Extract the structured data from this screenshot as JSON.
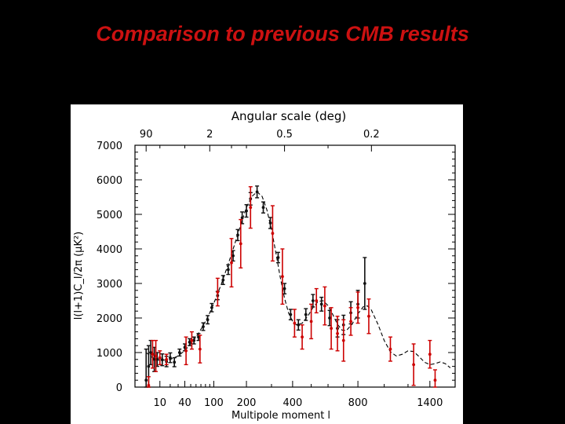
{
  "slide": {
    "title": "Comparison to previous CMB results"
  },
  "chart_data": {
    "type": "scatter",
    "title": "",
    "top_axis_label": "Angular scale (deg)",
    "top_ticks": [
      {
        "label": "90",
        "ell": 2
      },
      {
        "label": "2",
        "ell": 90
      },
      {
        "label": "0.5",
        "ell": 360
      },
      {
        "label": "0.2",
        "ell": 900
      }
    ],
    "xlabel": "Multipole moment l",
    "ylabel": "l(l+1)C_l/2π (μK²)",
    "x_ticks": [
      10,
      40,
      100,
      200,
      400,
      800,
      1400
    ],
    "y_ticks": [
      0,
      1000,
      2000,
      3000,
      4000,
      5000,
      6000,
      7000
    ],
    "ylim": [
      0,
      7000
    ],
    "x_scale": "sqrt",
    "series": [
      {
        "color": "#111111",
        "points": [
          [
            2,
            200,
            900
          ],
          [
            3,
            600,
            600
          ],
          [
            4,
            1000,
            350
          ],
          [
            6,
            800,
            350
          ],
          [
            8,
            800,
            200
          ],
          [
            12,
            790,
            170
          ],
          [
            16,
            740,
            150
          ],
          [
            20,
            850,
            140
          ],
          [
            25,
            720,
            130
          ],
          [
            32,
            1000,
            100
          ],
          [
            40,
            1150,
            100
          ],
          [
            48,
            1300,
            100
          ],
          [
            56,
            1350,
            100
          ],
          [
            65,
            1450,
            100
          ],
          [
            75,
            1750,
            110
          ],
          [
            85,
            1950,
            120
          ],
          [
            95,
            2300,
            120
          ],
          [
            110,
            2650,
            120
          ],
          [
            125,
            3100,
            130
          ],
          [
            140,
            3400,
            140
          ],
          [
            155,
            3800,
            150
          ],
          [
            170,
            4400,
            160
          ],
          [
            185,
            4900,
            170
          ],
          [
            200,
            5100,
            180
          ],
          [
            215,
            5450,
            180
          ],
          [
            240,
            5650,
            170
          ],
          [
            265,
            5200,
            160
          ],
          [
            295,
            4750,
            160
          ],
          [
            330,
            3750,
            150
          ],
          [
            360,
            2850,
            150
          ],
          [
            390,
            2100,
            150
          ],
          [
            430,
            1800,
            150
          ],
          [
            470,
            2100,
            170
          ],
          [
            510,
            2500,
            180
          ],
          [
            560,
            2400,
            200
          ],
          [
            610,
            2000,
            220
          ],
          [
            660,
            1700,
            250
          ],
          [
            700,
            1800,
            280
          ],
          [
            750,
            2150,
            320
          ],
          [
            800,
            2400,
            400
          ],
          [
            850,
            3000,
            750
          ]
        ]
      },
      {
        "color": "#cc0000",
        "points": [
          [
            3,
            50,
            250
          ],
          [
            5,
            950,
            400
          ],
          [
            7,
            900,
            450
          ],
          [
            10,
            850,
            200
          ],
          [
            16,
            800,
            150
          ],
          [
            42,
            1050,
            400
          ],
          [
            52,
            1350,
            250
          ],
          [
            68,
            1100,
            400
          ],
          [
            110,
            2750,
            400
          ],
          [
            150,
            3600,
            700
          ],
          [
            180,
            4150,
            700
          ],
          [
            215,
            5200,
            600
          ],
          [
            305,
            4450,
            800
          ],
          [
            350,
            3200,
            800
          ],
          [
            410,
            1850,
            400
          ],
          [
            450,
            1450,
            350
          ],
          [
            500,
            1900,
            500
          ],
          [
            530,
            2500,
            350
          ],
          [
            580,
            2350,
            550
          ],
          [
            620,
            1700,
            600
          ],
          [
            660,
            1550,
            500
          ],
          [
            700,
            1350,
            600
          ],
          [
            750,
            1900,
            400
          ],
          [
            800,
            2300,
            450
          ],
          [
            880,
            2050,
            500
          ],
          [
            1050,
            1100,
            350
          ],
          [
            1250,
            650,
            600
          ],
          [
            1400,
            950,
            400
          ],
          [
            1450,
            200,
            300
          ]
        ]
      }
    ],
    "model_curve": [
      [
        2,
        1000
      ],
      [
        5,
        850
      ],
      [
        10,
        770
      ],
      [
        20,
        800
      ],
      [
        30,
        900
      ],
      [
        40,
        1060
      ],
      [
        50,
        1250
      ],
      [
        60,
        1450
      ],
      [
        70,
        1670
      ],
      [
        80,
        1900
      ],
      [
        90,
        2150
      ],
      [
        100,
        2420
      ],
      [
        120,
        2980
      ],
      [
        140,
        3560
      ],
      [
        160,
        4140
      ],
      [
        180,
        4700
      ],
      [
        200,
        5200
      ],
      [
        220,
        5520
      ],
      [
        240,
        5650
      ],
      [
        260,
        5520
      ],
      [
        280,
        5130
      ],
      [
        300,
        4560
      ],
      [
        320,
        3870
      ],
      [
        340,
        3170
      ],
      [
        360,
        2570
      ],
      [
        380,
        2140
      ],
      [
        400,
        1900
      ],
      [
        420,
        1800
      ],
      [
        450,
        1850
      ],
      [
        480,
        2050
      ],
      [
        510,
        2300
      ],
      [
        540,
        2480
      ],
      [
        570,
        2500
      ],
      [
        600,
        2360
      ],
      [
        630,
        2100
      ],
      [
        660,
        1820
      ],
      [
        690,
        1650
      ],
      [
        720,
        1640
      ],
      [
        760,
        1830
      ],
      [
        800,
        2120
      ],
      [
        840,
        2330
      ],
      [
        870,
        2350
      ],
      [
        900,
        2230
      ],
      [
        950,
        1820
      ],
      [
        1000,
        1350
      ],
      [
        1050,
        1020
      ],
      [
        1100,
        900
      ],
      [
        1150,
        950
      ],
      [
        1200,
        1050
      ],
      [
        1250,
        1030
      ],
      [
        1300,
        880
      ],
      [
        1350,
        720
      ],
      [
        1400,
        650
      ],
      [
        1450,
        680
      ],
      [
        1500,
        730
      ],
      [
        1550,
        680
      ],
      [
        1600,
        560
      ]
    ]
  }
}
